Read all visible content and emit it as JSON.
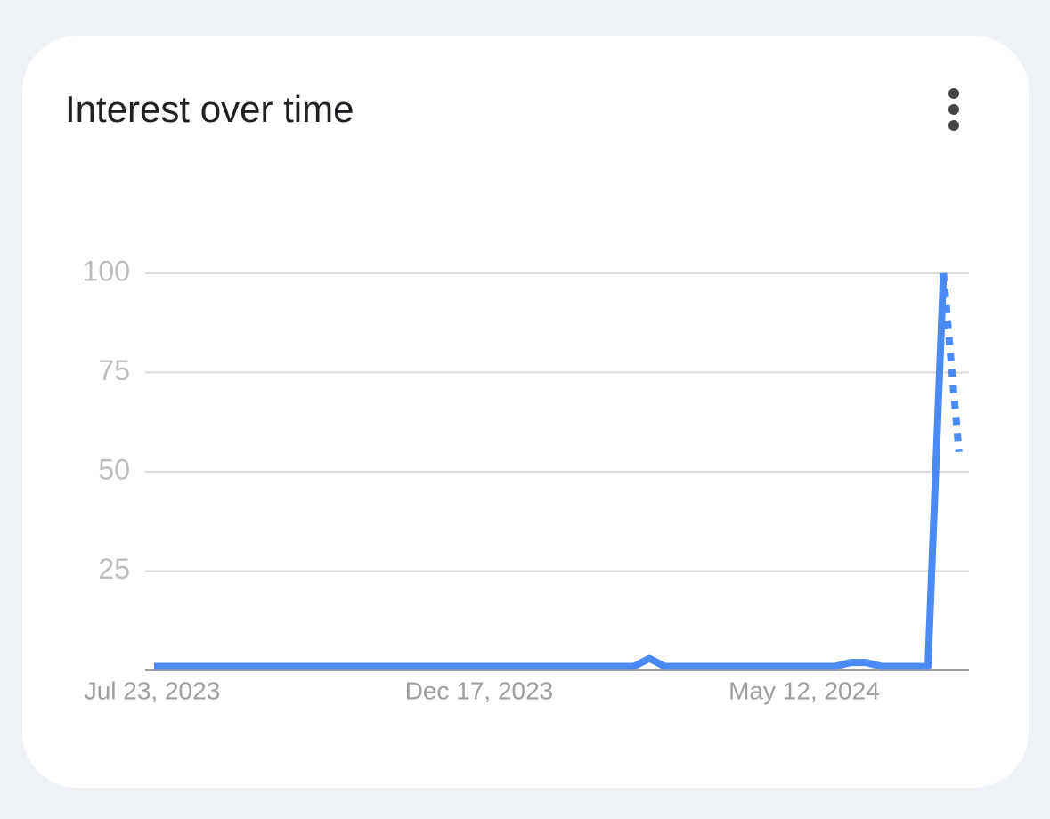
{
  "chart_data": {
    "type": "line",
    "title": "Interest over time",
    "categories": [
      "Jul 23, 2023",
      null,
      null,
      null,
      null,
      null,
      null,
      null,
      null,
      null,
      null,
      null,
      null,
      null,
      null,
      null,
      null,
      null,
      null,
      null,
      null,
      "Dec 17, 2023",
      null,
      null,
      null,
      null,
      null,
      null,
      null,
      null,
      null,
      null,
      null,
      null,
      null,
      null,
      null,
      null,
      null,
      null,
      null,
      null,
      "May 12, 2024",
      null,
      null,
      null,
      null,
      null,
      null,
      null,
      null,
      null,
      null
    ],
    "series": [
      {
        "color": "#4a8af4",
        "values": [
          1,
          1,
          1,
          1,
          1,
          1,
          1,
          1,
          1,
          1,
          1,
          1,
          1,
          1,
          1,
          1,
          1,
          1,
          1,
          1,
          1,
          1,
          1,
          1,
          1,
          1,
          1,
          1,
          1,
          1,
          1,
          1,
          3,
          1,
          1,
          1,
          1,
          1,
          1,
          1,
          1,
          1,
          1,
          1,
          1,
          2,
          2,
          1,
          1,
          1,
          1,
          100,
          null
        ]
      },
      {
        "color": "#4a8af4",
        "dashed": true,
        "values": [
          null,
          null,
          null,
          null,
          null,
          null,
          null,
          null,
          null,
          null,
          null,
          null,
          null,
          null,
          null,
          null,
          null,
          null,
          null,
          null,
          null,
          null,
          null,
          null,
          null,
          null,
          null,
          null,
          null,
          null,
          null,
          null,
          null,
          null,
          null,
          null,
          null,
          null,
          null,
          null,
          null,
          null,
          null,
          null,
          null,
          null,
          null,
          null,
          null,
          null,
          null,
          100,
          55
        ]
      }
    ],
    "ylim": [
      0,
      100
    ],
    "yticks": [
      25,
      50,
      75,
      100
    ],
    "grid": true
  }
}
